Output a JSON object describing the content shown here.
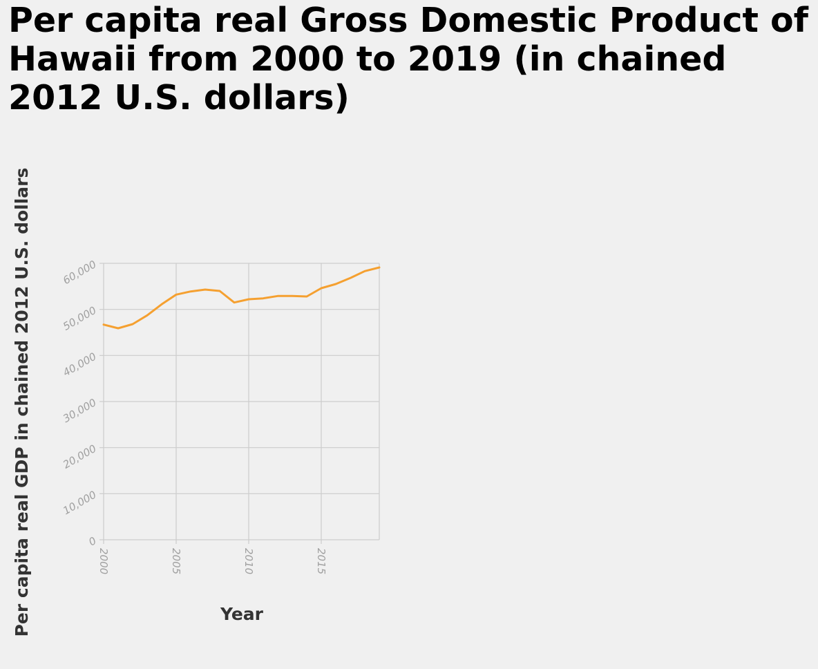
{
  "chart_data": {
    "type": "line",
    "title": "Per capita real Gross Domestic Product of Hawaii from 2000 to 2019 (in chained 2012 U.S. dollars)",
    "xlabel": "Year",
    "ylabel": "Per capita real GDP in chained 2012 U.S. dollars",
    "xlim": [
      2000,
      2019
    ],
    "ylim": [
      0,
      60000
    ],
    "x_ticks": [
      2000,
      2005,
      2010,
      2015
    ],
    "x_tick_labels": [
      "2000",
      "2005",
      "2010",
      "2015"
    ],
    "y_ticks": [
      0,
      10000,
      20000,
      30000,
      40000,
      50000,
      60000
    ],
    "y_tick_labels": [
      "0",
      "10,000",
      "20,000",
      "30,000",
      "40,000",
      "50,000",
      "60,000"
    ],
    "grid": true,
    "line_color": "#f5a030",
    "series": [
      {
        "x": [
          2000,
          2001,
          2002,
          2003,
          2004,
          2005,
          2006,
          2007,
          2008,
          2009,
          2010,
          2011,
          2012,
          2013,
          2014,
          2015,
          2016,
          2017,
          2018,
          2019
        ],
        "values": [
          46700,
          45900,
          46800,
          48700,
          51100,
          53200,
          53900,
          54300,
          54000,
          51500,
          52200,
          52400,
          52900,
          52900,
          52800,
          54600,
          55500,
          56800,
          58300,
          59100
        ]
      }
    ]
  }
}
